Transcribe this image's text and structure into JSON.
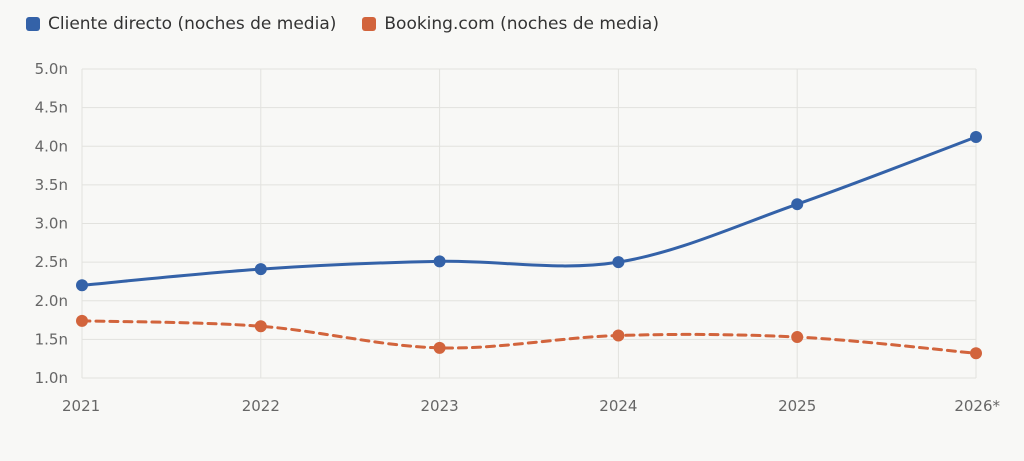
{
  "chart_data": {
    "type": "line",
    "categories": [
      "2021",
      "2022",
      "2023",
      "2024",
      "2025",
      "2026*"
    ],
    "ylim": [
      1.0,
      5.0
    ],
    "yticks": [
      "1.0n",
      "1.5n",
      "2.0n",
      "2.5n",
      "3.0n",
      "3.5n",
      "4.0n",
      "4.5n",
      "5.0n"
    ],
    "grid": true,
    "legend_position": "top-left",
    "series": [
      {
        "name": "Cliente directo (noches de media)",
        "values": [
          2.2,
          2.41,
          2.51,
          2.5,
          3.25,
          4.12
        ],
        "color": "#3462a8",
        "style": "solid"
      },
      {
        "name": "Booking.com (noches de media)",
        "values": [
          1.74,
          1.67,
          1.39,
          1.55,
          1.53,
          1.32
        ],
        "color": "#d2643c",
        "style": "dashed"
      }
    ]
  }
}
